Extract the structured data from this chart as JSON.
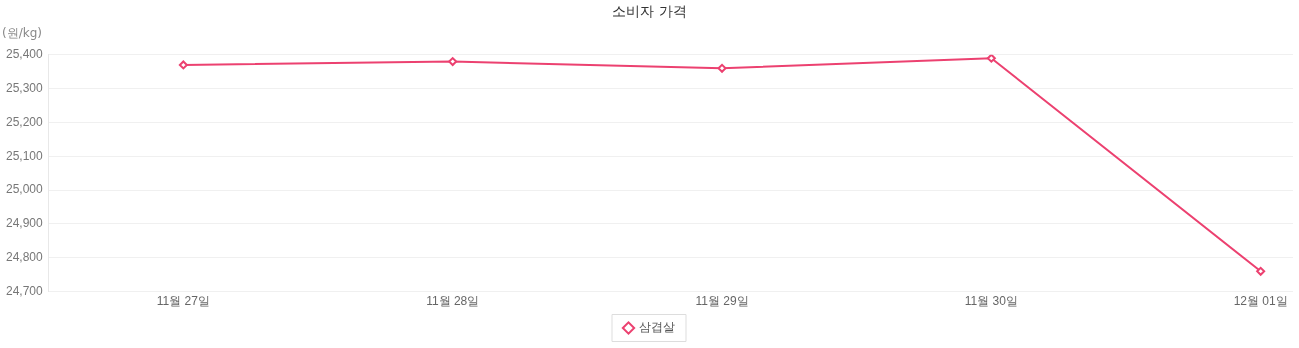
{
  "chart_data": {
    "type": "line",
    "title": "소비자 가격",
    "ylabel": "(원/kg)",
    "categories": [
      "11월 27일",
      "11월 28일",
      "11월 29일",
      "11월 30일",
      "12월 01일"
    ],
    "series": [
      {
        "name": "삼겹살",
        "color": "#ec4170",
        "values": [
          25370,
          25380,
          25360,
          25390,
          24760
        ]
      }
    ],
    "ylim": [
      24700,
      25400
    ],
    "yticks": [
      {
        "value": 24700,
        "label": "24,700"
      },
      {
        "value": 24800,
        "label": "24,800"
      },
      {
        "value": 24900,
        "label": "24,900"
      },
      {
        "value": 25000,
        "label": "25,000"
      },
      {
        "value": 25100,
        "label": "25,100"
      },
      {
        "value": 25200,
        "label": "25,200"
      },
      {
        "value": 25300,
        "label": "25,300"
      },
      {
        "value": 25400,
        "label": "25,400"
      }
    ],
    "grid": "y",
    "legend": "bottom",
    "marker": "diamond",
    "line_style": "solid"
  }
}
